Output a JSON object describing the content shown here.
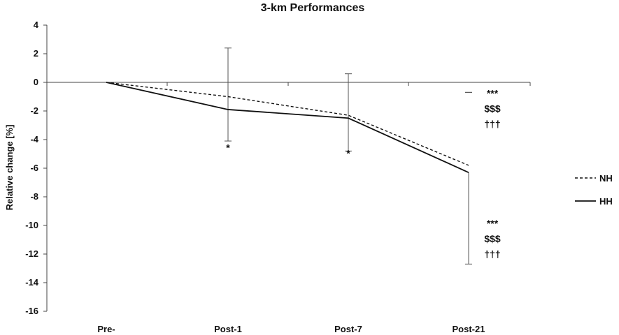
{
  "chart_data": {
    "type": "line",
    "title": "3-km Performances",
    "xlabel": "",
    "ylabel": "Relative change [%]",
    "categories": [
      "Pre-",
      "Post-1",
      "Post-7",
      "Post-21"
    ],
    "ylim": [
      -16,
      4
    ],
    "yticks": [
      4,
      2,
      0,
      -2,
      -4,
      -6,
      -8,
      -10,
      -12,
      -14,
      -16
    ],
    "grid": false,
    "legend_position": "right",
    "series": [
      {
        "name": "NH",
        "style": "dashed",
        "color": "#111111",
        "values": [
          0,
          -1.0,
          -2.3,
          -5.8
        ],
        "error_low": [
          null,
          null,
          null,
          -0.7
        ],
        "error_high": [
          null,
          null,
          null,
          -0.7
        ]
      },
      {
        "name": "HH",
        "style": "solid",
        "color": "#111111",
        "values": [
          0,
          -1.9,
          -2.5,
          -6.3
        ],
        "error_high": [
          null,
          2.4,
          0.6,
          null
        ],
        "error_low": [
          null,
          -4.1,
          -4.8,
          -12.7
        ]
      }
    ],
    "annotations": [
      {
        "category": "Post-1",
        "y": -4.8,
        "lines": [
          "*"
        ]
      },
      {
        "category": "Post-7",
        "y": -5.2,
        "lines": [
          "*"
        ]
      },
      {
        "category": "Post-21",
        "y": -1.0,
        "lines": [
          "***",
          "$$$",
          "†††"
        ]
      },
      {
        "category": "Post-21",
        "y": -10.1,
        "lines": [
          "***",
          "$$$",
          "†††"
        ]
      }
    ]
  }
}
